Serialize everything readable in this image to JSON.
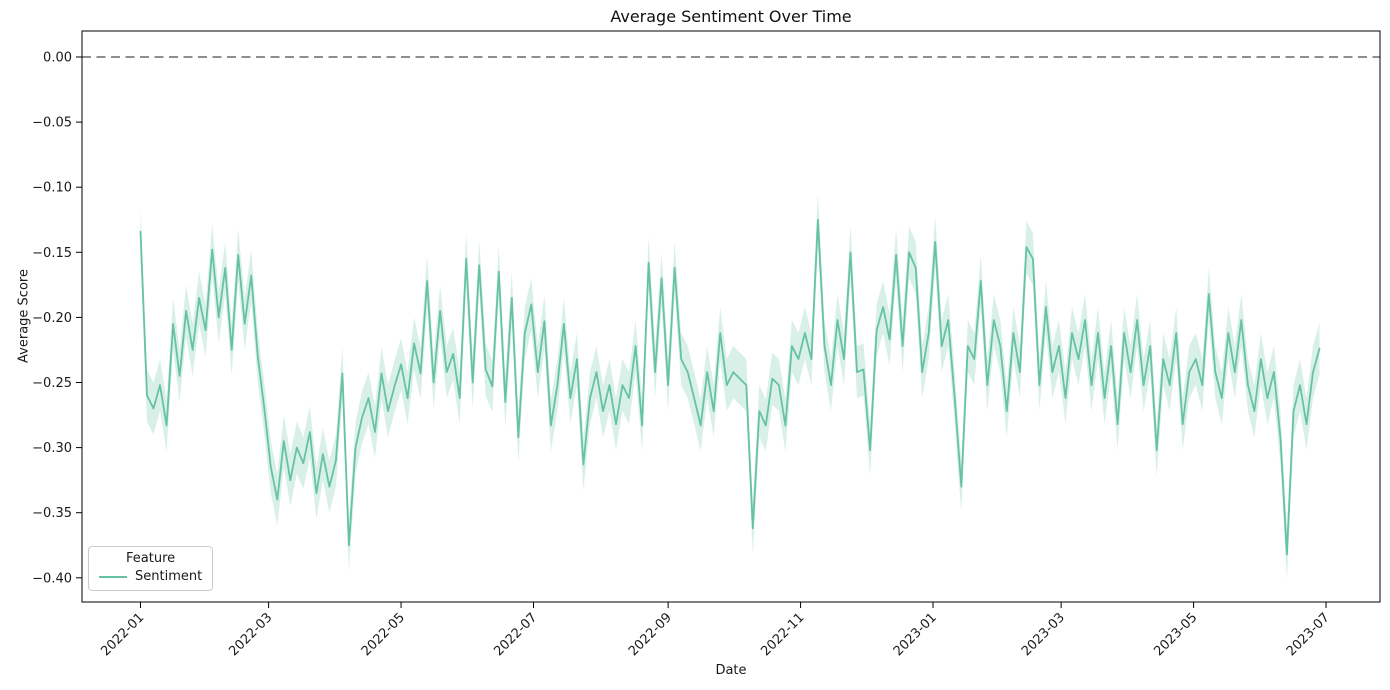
{
  "chart_data": {
    "type": "line",
    "title": "Average Sentiment Over Time",
    "xlabel": "Date",
    "ylabel": "Average Score",
    "grid": false,
    "legend": {
      "title": "Feature",
      "position": "lower left",
      "entries": [
        {
          "label": "Sentiment",
          "color": "#66c2a5"
        }
      ]
    },
    "zero_line": {
      "y": 0.0,
      "style": "dashed",
      "color": "#7f7f7f"
    },
    "ylim": [
      -0.419,
      0.02
    ],
    "yticks": [
      {
        "v": 0.0,
        "label": "0.00"
      },
      {
        "v": -0.05,
        "label": "−0.05"
      },
      {
        "v": -0.1,
        "label": "−0.10"
      },
      {
        "v": -0.15,
        "label": "−0.15"
      },
      {
        "v": -0.2,
        "label": "−0.20"
      },
      {
        "v": -0.25,
        "label": "−0.25"
      },
      {
        "v": -0.3,
        "label": "−0.30"
      },
      {
        "v": -0.35,
        "label": "−0.35"
      },
      {
        "v": -0.4,
        "label": "−0.40"
      }
    ],
    "xticks": [
      {
        "date": "2022-01-01",
        "label": "2022-01"
      },
      {
        "date": "2022-03-01",
        "label": "2022-03"
      },
      {
        "date": "2022-05-01",
        "label": "2022-05"
      },
      {
        "date": "2022-07-01",
        "label": "2022-07"
      },
      {
        "date": "2022-09-01",
        "label": "2022-09"
      },
      {
        "date": "2022-11-01",
        "label": "2022-11"
      },
      {
        "date": "2023-01-01",
        "label": "2023-01"
      },
      {
        "date": "2023-03-01",
        "label": "2023-03"
      },
      {
        "date": "2023-05-01",
        "label": "2023-05"
      },
      {
        "date": "2023-07-01",
        "label": "2023-07"
      }
    ],
    "series": [
      {
        "name": "Sentiment",
        "color": "#66c2a5",
        "band_color": "rgba(102,194,165,0.25)",
        "band_halfwidth": 0.02,
        "points": [
          [
            "2022-01-01",
            -0.134
          ],
          [
            "2022-01-04",
            -0.26
          ],
          [
            "2022-01-07",
            -0.27
          ],
          [
            "2022-01-10",
            -0.252
          ],
          [
            "2022-01-13",
            -0.283
          ],
          [
            "2022-01-16",
            -0.205
          ],
          [
            "2022-01-19",
            -0.245
          ],
          [
            "2022-01-22",
            -0.195
          ],
          [
            "2022-01-25",
            -0.225
          ],
          [
            "2022-01-28",
            -0.185
          ],
          [
            "2022-01-31",
            -0.21
          ],
          [
            "2022-02-03",
            -0.148
          ],
          [
            "2022-02-06",
            -0.2
          ],
          [
            "2022-02-09",
            -0.162
          ],
          [
            "2022-02-12",
            -0.225
          ],
          [
            "2022-02-15",
            -0.152
          ],
          [
            "2022-02-18",
            -0.205
          ],
          [
            "2022-02-21",
            -0.168
          ],
          [
            "2022-02-24",
            -0.23
          ],
          [
            "2022-02-27",
            -0.27
          ],
          [
            "2022-03-02",
            -0.315
          ],
          [
            "2022-03-05",
            -0.34
          ],
          [
            "2022-03-08",
            -0.295
          ],
          [
            "2022-03-11",
            -0.325
          ],
          [
            "2022-03-14",
            -0.3
          ],
          [
            "2022-03-17",
            -0.312
          ],
          [
            "2022-03-20",
            -0.288
          ],
          [
            "2022-03-23",
            -0.335
          ],
          [
            "2022-03-26",
            -0.305
          ],
          [
            "2022-03-29",
            -0.33
          ],
          [
            "2022-04-01",
            -0.31
          ],
          [
            "2022-04-04",
            -0.243
          ],
          [
            "2022-04-07",
            -0.375
          ],
          [
            "2022-04-10",
            -0.3
          ],
          [
            "2022-04-13",
            -0.277
          ],
          [
            "2022-04-16",
            -0.262
          ],
          [
            "2022-04-19",
            -0.288
          ],
          [
            "2022-04-22",
            -0.243
          ],
          [
            "2022-04-25",
            -0.272
          ],
          [
            "2022-04-28",
            -0.253
          ],
          [
            "2022-05-01",
            -0.236
          ],
          [
            "2022-05-04",
            -0.262
          ],
          [
            "2022-05-07",
            -0.22
          ],
          [
            "2022-05-10",
            -0.243
          ],
          [
            "2022-05-13",
            -0.172
          ],
          [
            "2022-05-16",
            -0.25
          ],
          [
            "2022-05-19",
            -0.195
          ],
          [
            "2022-05-22",
            -0.242
          ],
          [
            "2022-05-25",
            -0.228
          ],
          [
            "2022-05-28",
            -0.262
          ],
          [
            "2022-05-31",
            -0.155
          ],
          [
            "2022-06-03",
            -0.25
          ],
          [
            "2022-06-06",
            -0.16
          ],
          [
            "2022-06-09",
            -0.24
          ],
          [
            "2022-06-12",
            -0.253
          ],
          [
            "2022-06-15",
            -0.165
          ],
          [
            "2022-06-18",
            -0.265
          ],
          [
            "2022-06-21",
            -0.185
          ],
          [
            "2022-06-24",
            -0.292
          ],
          [
            "2022-06-27",
            -0.212
          ],
          [
            "2022-06-30",
            -0.19
          ],
          [
            "2022-07-03",
            -0.242
          ],
          [
            "2022-07-06",
            -0.203
          ],
          [
            "2022-07-09",
            -0.283
          ],
          [
            "2022-07-12",
            -0.252
          ],
          [
            "2022-07-15",
            -0.205
          ],
          [
            "2022-07-18",
            -0.262
          ],
          [
            "2022-07-21",
            -0.232
          ],
          [
            "2022-07-24",
            -0.313
          ],
          [
            "2022-07-27",
            -0.262
          ],
          [
            "2022-07-30",
            -0.242
          ],
          [
            "2022-08-02",
            -0.272
          ],
          [
            "2022-08-05",
            -0.252
          ],
          [
            "2022-08-08",
            -0.282
          ],
          [
            "2022-08-11",
            -0.252
          ],
          [
            "2022-08-14",
            -0.262
          ],
          [
            "2022-08-17",
            -0.222
          ],
          [
            "2022-08-20",
            -0.283
          ],
          [
            "2022-08-23",
            -0.158
          ],
          [
            "2022-08-26",
            -0.242
          ],
          [
            "2022-08-29",
            -0.17
          ],
          [
            "2022-09-01",
            -0.252
          ],
          [
            "2022-09-04",
            -0.162
          ],
          [
            "2022-09-07",
            -0.232
          ],
          [
            "2022-09-10",
            -0.242
          ],
          [
            "2022-09-13",
            -0.262
          ],
          [
            "2022-09-16",
            -0.283
          ],
          [
            "2022-09-19",
            -0.242
          ],
          [
            "2022-09-22",
            -0.272
          ],
          [
            "2022-09-25",
            -0.212
          ],
          [
            "2022-09-28",
            -0.252
          ],
          [
            "2022-10-01",
            -0.242
          ],
          [
            "2022-10-04",
            -0.247
          ],
          [
            "2022-10-07",
            -0.252
          ],
          [
            "2022-10-10",
            -0.362
          ],
          [
            "2022-10-13",
            -0.272
          ],
          [
            "2022-10-16",
            -0.283
          ],
          [
            "2022-10-19",
            -0.247
          ],
          [
            "2022-10-22",
            -0.252
          ],
          [
            "2022-10-25",
            -0.283
          ],
          [
            "2022-10-28",
            -0.222
          ],
          [
            "2022-10-31",
            -0.232
          ],
          [
            "2022-11-03",
            -0.212
          ],
          [
            "2022-11-06",
            -0.232
          ],
          [
            "2022-11-09",
            -0.125
          ],
          [
            "2022-11-12",
            -0.222
          ],
          [
            "2022-11-15",
            -0.252
          ],
          [
            "2022-11-18",
            -0.202
          ],
          [
            "2022-11-21",
            -0.232
          ],
          [
            "2022-11-24",
            -0.15
          ],
          [
            "2022-11-27",
            -0.242
          ],
          [
            "2022-11-30",
            -0.24
          ],
          [
            "2022-12-03",
            -0.302
          ],
          [
            "2022-12-06",
            -0.21
          ],
          [
            "2022-12-09",
            -0.192
          ],
          [
            "2022-12-12",
            -0.217
          ],
          [
            "2022-12-15",
            -0.152
          ],
          [
            "2022-12-18",
            -0.222
          ],
          [
            "2022-12-21",
            -0.15
          ],
          [
            "2022-12-24",
            -0.162
          ],
          [
            "2022-12-27",
            -0.242
          ],
          [
            "2022-12-30",
            -0.212
          ],
          [
            "2023-01-02",
            -0.142
          ],
          [
            "2023-01-05",
            -0.222
          ],
          [
            "2023-01-08",
            -0.202
          ],
          [
            "2023-01-11",
            -0.262
          ],
          [
            "2023-01-14",
            -0.33
          ],
          [
            "2023-01-17",
            -0.222
          ],
          [
            "2023-01-20",
            -0.232
          ],
          [
            "2023-01-23",
            -0.172
          ],
          [
            "2023-01-26",
            -0.252
          ],
          [
            "2023-01-29",
            -0.202
          ],
          [
            "2023-02-01",
            -0.222
          ],
          [
            "2023-02-04",
            -0.272
          ],
          [
            "2023-02-07",
            -0.212
          ],
          [
            "2023-02-10",
            -0.242
          ],
          [
            "2023-02-13",
            -0.146
          ],
          [
            "2023-02-16",
            -0.155
          ],
          [
            "2023-02-19",
            -0.252
          ],
          [
            "2023-02-22",
            -0.192
          ],
          [
            "2023-02-25",
            -0.242
          ],
          [
            "2023-02-28",
            -0.222
          ],
          [
            "2023-03-03",
            -0.262
          ],
          [
            "2023-03-06",
            -0.212
          ],
          [
            "2023-03-09",
            -0.232
          ],
          [
            "2023-03-12",
            -0.202
          ],
          [
            "2023-03-15",
            -0.252
          ],
          [
            "2023-03-18",
            -0.212
          ],
          [
            "2023-03-21",
            -0.262
          ],
          [
            "2023-03-24",
            -0.222
          ],
          [
            "2023-03-27",
            -0.282
          ],
          [
            "2023-03-30",
            -0.212
          ],
          [
            "2023-04-02",
            -0.242
          ],
          [
            "2023-04-05",
            -0.202
          ],
          [
            "2023-04-08",
            -0.252
          ],
          [
            "2023-04-11",
            -0.222
          ],
          [
            "2023-04-14",
            -0.302
          ],
          [
            "2023-04-17",
            -0.232
          ],
          [
            "2023-04-20",
            -0.252
          ],
          [
            "2023-04-23",
            -0.212
          ],
          [
            "2023-04-26",
            -0.282
          ],
          [
            "2023-04-29",
            -0.242
          ],
          [
            "2023-05-02",
            -0.232
          ],
          [
            "2023-05-05",
            -0.252
          ],
          [
            "2023-05-08",
            -0.182
          ],
          [
            "2023-05-11",
            -0.242
          ],
          [
            "2023-05-14",
            -0.262
          ],
          [
            "2023-05-17",
            -0.212
          ],
          [
            "2023-05-20",
            -0.242
          ],
          [
            "2023-05-23",
            -0.202
          ],
          [
            "2023-05-26",
            -0.252
          ],
          [
            "2023-05-29",
            -0.272
          ],
          [
            "2023-06-01",
            -0.232
          ],
          [
            "2023-06-04",
            -0.262
          ],
          [
            "2023-06-07",
            -0.242
          ],
          [
            "2023-06-10",
            -0.292
          ],
          [
            "2023-06-13",
            -0.382
          ],
          [
            "2023-06-16",
            -0.272
          ],
          [
            "2023-06-19",
            -0.252
          ],
          [
            "2023-06-22",
            -0.282
          ],
          [
            "2023-06-25",
            -0.242
          ],
          [
            "2023-06-28",
            -0.224
          ]
        ]
      }
    ]
  }
}
